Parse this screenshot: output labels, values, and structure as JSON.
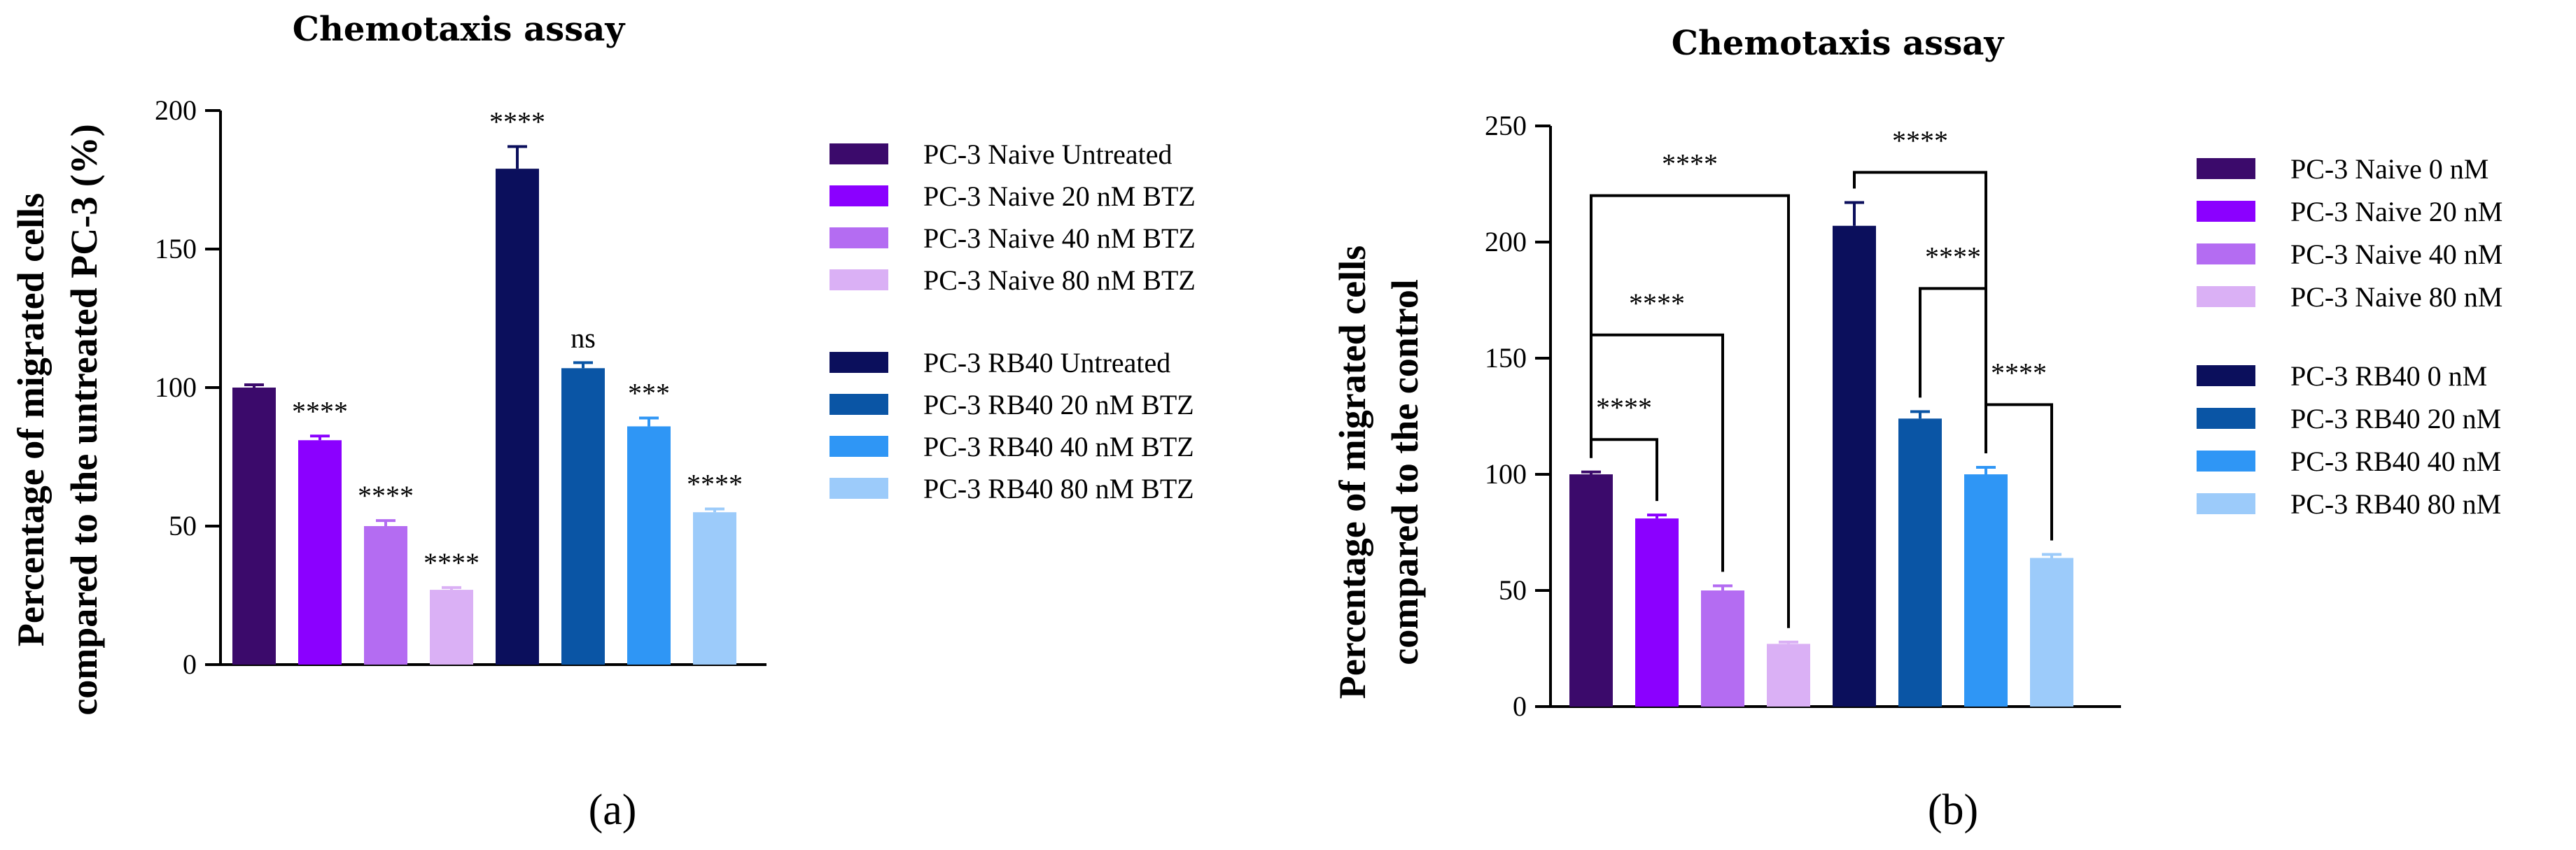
{
  "chart_data": [
    {
      "panel_label": "(a)",
      "type": "bar",
      "title": "Chemotaxis assay",
      "ylabel_line1": "Percentage of migrated cells",
      "ylabel_line2": "compared to the untreated PC-3 (%)",
      "ylim": [
        0,
        200
      ],
      "yticks": [
        0,
        50,
        100,
        150,
        200
      ],
      "bars": [
        {
          "name": "PC-3 Naive Untreated",
          "value": 100,
          "error": 1,
          "color": "#3b0a6b",
          "annotation": ""
        },
        {
          "name": "PC-3 Naive 20 nM BTZ",
          "value": 81,
          "error": 1.5,
          "color": "#8b00ff",
          "annotation": "****"
        },
        {
          "name": "PC-3 Naive 40 nM BTZ",
          "value": 50,
          "error": 2,
          "color": "#b46cf2",
          "annotation": "****"
        },
        {
          "name": "PC-3 Naive 80 nM BTZ",
          "value": 27,
          "error": 0.8,
          "color": "#dab0f5",
          "annotation": "****"
        },
        {
          "name": "PC-3 RB40 Untreated",
          "value": 179,
          "error": 8,
          "color": "#0b0f5c",
          "annotation": "****"
        },
        {
          "name": "PC-3 RB40 20 nM BTZ",
          "value": 107,
          "error": 2,
          "color": "#0a55a5",
          "annotation": "ns"
        },
        {
          "name": "PC-3 RB40 40 nM BTZ",
          "value": 86,
          "error": 3,
          "color": "#2f96f5",
          "annotation": "***"
        },
        {
          "name": "PC-3 RB40 80 nM BTZ",
          "value": 55,
          "error": 1.2,
          "color": "#9ccbfa",
          "annotation": "****"
        }
      ],
      "legend": [
        "PC-3 Naive Untreated",
        "PC-3 Naive 20 nM BTZ",
        "PC-3 Naive 40 nM BTZ",
        "PC-3 Naive 80 nM BTZ",
        "PC-3 RB40 Untreated",
        "PC-3 RB40 20 nM BTZ",
        "PC-3 RB40 40 nM BTZ",
        "PC-3 RB40 80 nM BTZ"
      ]
    },
    {
      "panel_label": "(b)",
      "type": "bar",
      "title": "Chemotaxis assay",
      "ylabel_line1": "Percentage of migrated cells",
      "ylabel_line2": "compared to the control",
      "ylim": [
        0,
        250
      ],
      "yticks": [
        0,
        50,
        100,
        150,
        200,
        250
      ],
      "bars": [
        {
          "name": "PC-3 Naive 0 nM",
          "value": 100,
          "error": 1,
          "color": "#3b0a6b"
        },
        {
          "name": "PC-3 Naive 20 nM",
          "value": 81,
          "error": 1.5,
          "color": "#8b00ff"
        },
        {
          "name": "PC-3 Naive 40 nM",
          "value": 50,
          "error": 2,
          "color": "#b46cf2"
        },
        {
          "name": "PC-3 Naive 80 nM",
          "value": 27,
          "error": 0.8,
          "color": "#dab0f5"
        },
        {
          "name": "PC-3 RB40 0 nM",
          "value": 207,
          "error": 10,
          "color": "#0b0f5c"
        },
        {
          "name": "PC-3 RB40 20 nM",
          "value": 124,
          "error": 3,
          "color": "#0a55a5"
        },
        {
          "name": "PC-3 RB40 40 nM",
          "value": 100,
          "error": 3,
          "color": "#2f96f5"
        },
        {
          "name": "PC-3 RB40 80 nM",
          "value": 64,
          "error": 1.5,
          "color": "#9ccbfa"
        }
      ],
      "comparisons": [
        {
          "from": 0,
          "to": 1,
          "label": "****",
          "bracket_y": 115
        },
        {
          "from": 0,
          "to": 2,
          "label": "****",
          "bracket_y": 160
        },
        {
          "from": 0,
          "to": 3,
          "label": "****",
          "bracket_y": 220
        },
        {
          "from": 4,
          "to": 6,
          "label": "****",
          "bracket_y": 230
        },
        {
          "from": 5,
          "to": 6,
          "label": "****",
          "bracket_y": 180
        },
        {
          "from": 6,
          "to": 7,
          "label": "****",
          "bracket_y": 130
        }
      ],
      "legend": [
        "PC-3 Naive 0 nM",
        "PC-3 Naive 20 nM",
        "PC-3 Naive 40 nM",
        "PC-3 Naive 80 nM",
        "PC-3 RB40 0 nM",
        "PC-3 RB40 20 nM",
        "PC-3 RB40 40 nM",
        "PC-3 RB40 80 nM"
      ]
    }
  ]
}
